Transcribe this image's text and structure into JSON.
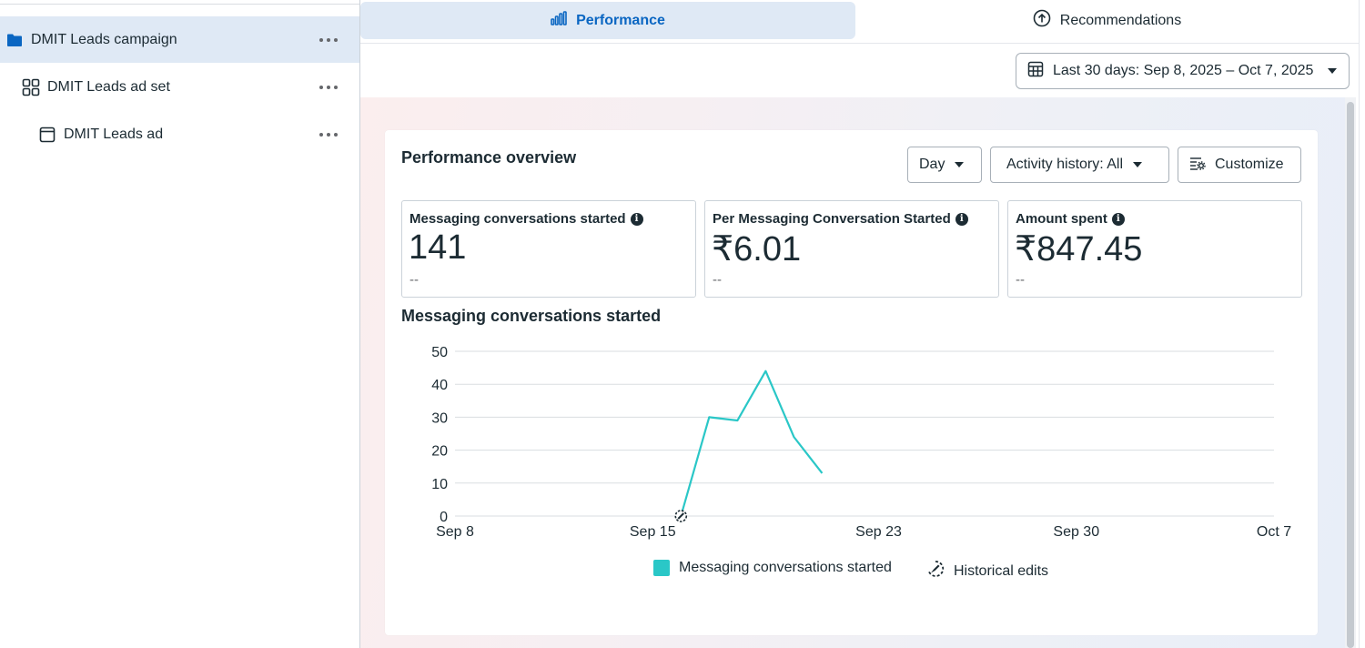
{
  "tree": {
    "items": [
      {
        "label": "DMIT Leads campaign",
        "icon": "folder-icon"
      },
      {
        "label": "DMIT Leads ad set",
        "icon": "grid-icon"
      },
      {
        "label": "DMIT Leads ad",
        "icon": "ad-frame-icon"
      }
    ]
  },
  "tabs": {
    "performance": "Performance",
    "recommendations": "Recommendations"
  },
  "date_range": "Last 30 days: Sep 8, 2025 – Oct 7, 2025",
  "overview": {
    "title": "Performance overview",
    "day_label": "Day",
    "activity_label": "Activity history: All",
    "customize_label": "Customize"
  },
  "metrics": [
    {
      "label": "Messaging conversations started",
      "value": "141",
      "comparison": "--"
    },
    {
      "label": "Per Messaging Conversation Started",
      "value": "₹6.01",
      "comparison": "--"
    },
    {
      "label": "Amount spent",
      "value": "₹847.45",
      "comparison": "--"
    }
  ],
  "chart_title": "Messaging conversations started",
  "colors": {
    "accent": "#0a66c2",
    "series": "#2ac7c7",
    "active_bg": "#dfe9f5"
  },
  "chart_data": {
    "type": "line",
    "x_ticks": [
      "Sep 8",
      "Sep 15",
      "Sep 23",
      "Sep 30",
      "Oct 7"
    ],
    "y_ticks": [
      0,
      10,
      20,
      30,
      40,
      50
    ],
    "ylim": [
      0,
      50
    ],
    "series": [
      {
        "name": "Messaging conversations started",
        "x": [
          "Sep 16",
          "Sep 17",
          "Sep 18",
          "Sep 19",
          "Sep 20",
          "Sep 21"
        ],
        "values": [
          0,
          30,
          29,
          44,
          24,
          13
        ]
      }
    ],
    "historical_edits": [
      "Sep 16"
    ],
    "legend": [
      "Messaging conversations started",
      "Historical edits"
    ],
    "grid": true,
    "legend_position": "bottom"
  }
}
